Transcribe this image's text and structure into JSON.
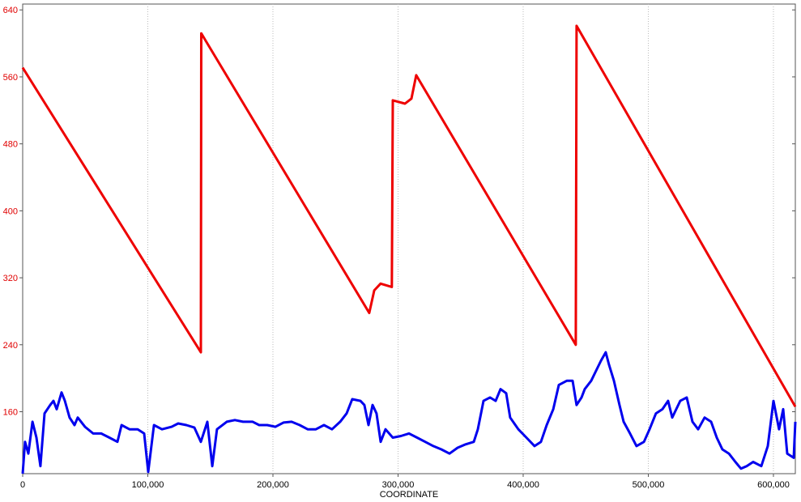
{
  "chart_data": {
    "type": "line",
    "x_label": "COORDINATE",
    "xlim": [
      0,
      617500
    ],
    "ylim": [
      86,
      647
    ],
    "xticks": [
      0,
      {
        "value": 100000,
        "label": "100,000"
      },
      {
        "value": 200000,
        "label": "200,000"
      },
      {
        "value": 300000,
        "label": "300,000"
      },
      {
        "value": 400000,
        "label": "400,000"
      },
      {
        "value": 500000,
        "label": "500,000"
      },
      {
        "value": 600000,
        "label": "600,000"
      }
    ],
    "yticks": [
      160,
      240,
      320,
      400,
      480,
      560,
      640
    ],
    "ytick_color": "#e00000",
    "grid": "x",
    "series": [
      {
        "color": "#ee0000",
        "x": [
          0,
          142400,
          142700,
          277000,
          281000,
          286000,
          295000,
          295800,
          305500,
          310700,
          314500,
          442000,
          442700,
          617500
        ],
        "values": [
          571,
          231,
          612,
          278,
          305,
          313,
          309,
          532,
          528,
          534,
          562,
          240,
          621,
          166
        ]
      },
      {
        "color": "#0000ee",
        "x": [
          0,
          1900,
          4500,
          7800,
          11000,
          14200,
          17500,
          22000,
          24600,
          27200,
          31100,
          33700,
          37500,
          41400,
          44000,
          49800,
          56300,
          62800,
          69300,
          75700,
          79000,
          85400,
          91900,
          97100,
          100300,
          104900,
          111300,
          119100,
          124300,
          130800,
          137200,
          142400,
          147600,
          151500,
          155300,
          163100,
          169600,
          176100,
          183800,
          189000,
          195500,
          202000,
          208400,
          214900,
          221400,
          227800,
          234300,
          240800,
          247200,
          253700,
          258900,
          263400,
          269900,
          273100,
          276400,
          279600,
          282800,
          286100,
          290000,
          295800,
          302300,
          308700,
          315200,
          321700,
          328200,
          334600,
          341100,
          347600,
          354000,
          360500,
          363800,
          368300,
          373500,
          378000,
          381900,
          386400,
          389600,
          396100,
          402600,
          409100,
          414200,
          418800,
          424000,
          428500,
          435000,
          439500,
          442700,
          446600,
          449200,
          454400,
          457600,
          462200,
          466000,
          468600,
          472500,
          477000,
          480300,
          485400,
          490600,
          496500,
          501000,
          506100,
          511300,
          515800,
          519100,
          525500,
          530700,
          535300,
          539800,
          545000,
          550200,
          554700,
          559200,
          564400,
          569600,
          574100,
          578600,
          583800,
          590300,
          595500,
          600000,
          604500,
          607800,
          611000,
          616200,
          617500
        ],
        "values": [
          86,
          124,
          110,
          148,
          129,
          95,
          158,
          168,
          173,
          163,
          183,
          173,
          153,
          144,
          153,
          142,
          134,
          134,
          129,
          124,
          144,
          139,
          139,
          134,
          88,
          144,
          139,
          142,
          146,
          144,
          141,
          124,
          148,
          95,
          139,
          148,
          150,
          148,
          148,
          144,
          144,
          142,
          147,
          148,
          144,
          139,
          139,
          144,
          139,
          148,
          158,
          175,
          173,
          168,
          144,
          168,
          158,
          124,
          139,
          129,
          131,
          134,
          129,
          124,
          119,
          115,
          110,
          117,
          121,
          124,
          139,
          173,
          177,
          173,
          187,
          182,
          153,
          139,
          129,
          119,
          124,
          144,
          163,
          192,
          197,
          197,
          168,
          177,
          187,
          197,
          207,
          221,
          231,
          216,
          197,
          168,
          148,
          134,
          119,
          124,
          139,
          158,
          163,
          173,
          153,
          173,
          177,
          148,
          139,
          153,
          148,
          129,
          115,
          110,
          100,
          92,
          95,
          100,
          95,
          119,
          173,
          139,
          163,
          110,
          105,
          148
        ]
      }
    ]
  }
}
